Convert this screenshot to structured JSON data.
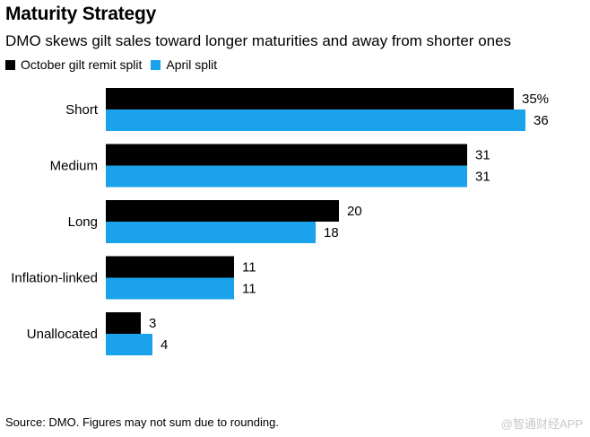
{
  "title": "Maturity Strategy",
  "subtitle": "DMO skews gilt sales toward longer maturities and away from shorter ones",
  "footer": "Source: DMO. Figures may not sum due to rounding.",
  "watermark": "@智通财经APP",
  "colors": {
    "october": "#000000",
    "april": "#1aa3ea"
  },
  "chart_data": {
    "type": "bar",
    "orientation": "horizontal",
    "title": "Maturity Strategy",
    "xlabel": "",
    "ylabel": "",
    "unit": "%",
    "xlim": [
      0,
      36
    ],
    "grid": false,
    "legend_position": "top-left",
    "categories": [
      "Short",
      "Medium",
      "Long",
      "Inflation-linked",
      "Unallocated"
    ],
    "series": [
      {
        "name": "October gilt remit split",
        "values": [
          35,
          31,
          20,
          11,
          3
        ],
        "labels": [
          "35%",
          "31",
          "20",
          "11",
          "3"
        ]
      },
      {
        "name": "April split",
        "values": [
          36,
          31,
          18,
          11,
          4
        ],
        "labels": [
          "36",
          "31",
          "18",
          "11",
          "4"
        ]
      }
    ]
  }
}
